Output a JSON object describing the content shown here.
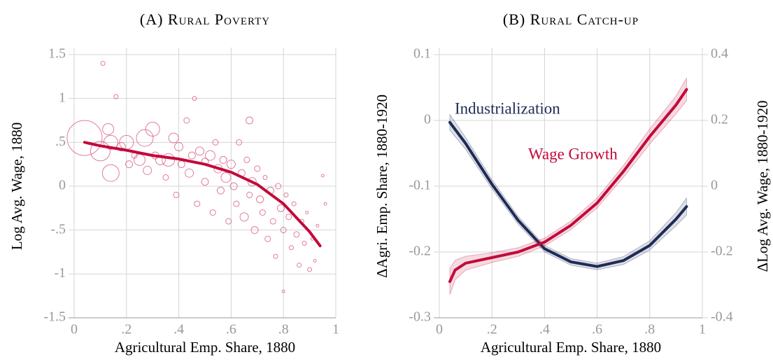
{
  "chart_data": [
    {
      "type": "scatter",
      "title": "(A) Rural Poverty",
      "x_label": "Agricultural  Emp. Share, 1880",
      "y_label": "Log Avg. Wage, 1880",
      "xlim": [
        0,
        1
      ],
      "ylim": [
        -1.5,
        1.5
      ],
      "xticks": [
        0,
        {
          "value": 0.2,
          "label": ".2"
        },
        {
          "value": 0.4,
          "label": ".4"
        },
        {
          "value": 0.6,
          "label": ".6"
        },
        {
          "value": 0.8,
          "label": ".8"
        },
        1
      ],
      "yticks": [
        1.5,
        1,
        {
          "value": 0.5,
          "label": ".5"
        },
        0,
        {
          "value": -0.5,
          "label": "-.5"
        },
        -1,
        -1.5
      ],
      "grid": true,
      "points": {
        "color": "#d4527a",
        "x": [
          0.04,
          0.1,
          0.11,
          0.13,
          0.14,
          0.14,
          0.16,
          0.18,
          0.2,
          0.21,
          0.23,
          0.25,
          0.27,
          0.28,
          0.3,
          0.31,
          0.33,
          0.35,
          0.36,
          0.38,
          0.39,
          0.4,
          0.41,
          0.43,
          0.44,
          0.45,
          0.46,
          0.47,
          0.48,
          0.5,
          0.5,
          0.52,
          0.53,
          0.54,
          0.55,
          0.56,
          0.57,
          0.58,
          0.59,
          0.6,
          0.61,
          0.62,
          0.63,
          0.64,
          0.65,
          0.66,
          0.67,
          0.67,
          0.68,
          0.69,
          0.7,
          0.71,
          0.72,
          0.73,
          0.74,
          0.75,
          0.76,
          0.77,
          0.78,
          0.79,
          0.8,
          0.8,
          0.81,
          0.82,
          0.83,
          0.84,
          0.85,
          0.86,
          0.87,
          0.88,
          0.89,
          0.9,
          0.91,
          0.92,
          0.93,
          0.95,
          0.96
        ],
        "values": [
          0.55,
          0.4,
          1.4,
          0.65,
          0.5,
          0.15,
          1.02,
          0.45,
          0.5,
          0.25,
          0.35,
          0.3,
          0.55,
          0.18,
          0.65,
          0.35,
          0.3,
          0.1,
          0.3,
          0.55,
          -0.1,
          0.45,
          0.25,
          0.75,
          0.15,
          0.35,
          1.0,
          -0.2,
          0.4,
          0.28,
          0.05,
          0.35,
          -0.3,
          0.5,
          0.2,
          -0.05,
          0.3,
          0.1,
          -0.4,
          0.25,
          0.0,
          -0.2,
          0.5,
          0.15,
          -0.35,
          0.3,
          0.75,
          -0.1,
          0.05,
          -0.5,
          0.2,
          -0.15,
          -0.3,
          0.1,
          -0.6,
          -0.05,
          -0.4,
          -0.8,
          0.0,
          -0.25,
          -0.5,
          -1.2,
          -0.1,
          -0.35,
          -0.7,
          -0.2,
          -0.55,
          -0.9,
          -0.4,
          -0.65,
          -0.3,
          -0.95,
          -0.6,
          -0.85,
          -0.45,
          0.12,
          -0.2
        ],
        "sizes": [
          25,
          14,
          3,
          8,
          10,
          12,
          3,
          6,
          10,
          5,
          4,
          8,
          12,
          6,
          10,
          5,
          7,
          4,
          9,
          7,
          4,
          6,
          5,
          4,
          6,
          5,
          3,
          4,
          6,
          5,
          5,
          7,
          4,
          4,
          6,
          5,
          5,
          7,
          4,
          6,
          5,
          4,
          4,
          5,
          6,
          4,
          5,
          4,
          6,
          5,
          4,
          5,
          4,
          3,
          4,
          5,
          4,
          3,
          4,
          5,
          4,
          2,
          3,
          4,
          3,
          3,
          4,
          3,
          3,
          3,
          2,
          3,
          2,
          2,
          2,
          2,
          2
        ]
      },
      "fit": {
        "color": "#c20a3a",
        "x": [
          0.04,
          0.1,
          0.2,
          0.3,
          0.4,
          0.5,
          0.6,
          0.7,
          0.8,
          0.9,
          0.94
        ],
        "values": [
          0.5,
          0.46,
          0.41,
          0.35,
          0.31,
          0.25,
          0.16,
          0.02,
          -0.2,
          -0.52,
          -0.68
        ]
      }
    },
    {
      "type": "line",
      "title": "(B) Rural Catch-up",
      "x_label": "Agricultural  Emp. Share, 1880",
      "y_label": "ΔAgri. Emp. Share, 1880-1920",
      "y2_label": "ΔLog Avg. Wage, 1880-1920",
      "xlim": [
        0,
        1
      ],
      "ylim": [
        -0.3,
        0.1
      ],
      "y2lim": [
        -0.4,
        0.4
      ],
      "xticks": [
        0,
        {
          "value": 0.2,
          "label": ".2"
        },
        {
          "value": 0.4,
          "label": ".4"
        },
        {
          "value": 0.6,
          "label": ".6"
        },
        {
          "value": 0.8,
          "label": ".8"
        },
        1
      ],
      "yticks": [
        0.1,
        0,
        -0.1,
        -0.2,
        -0.3
      ],
      "y2ticks": [
        0.4,
        0.2,
        0,
        -0.2,
        -0.4
      ],
      "grid": true,
      "series": [
        {
          "name": "Industrialization",
          "color": "#1e2b55",
          "axis": "y",
          "x": [
            0.04,
            0.1,
            0.2,
            0.3,
            0.4,
            0.5,
            0.6,
            0.7,
            0.8,
            0.9,
            0.94
          ],
          "values": [
            -0.003,
            -0.035,
            -0.097,
            -0.152,
            -0.195,
            -0.215,
            -0.222,
            -0.213,
            -0.19,
            -0.15,
            -0.131
          ],
          "lower": [
            -0.015,
            -0.044,
            -0.104,
            -0.158,
            -0.2,
            -0.22,
            -0.227,
            -0.219,
            -0.197,
            -0.16,
            -0.144
          ],
          "upper": [
            0.009,
            -0.026,
            -0.09,
            -0.146,
            -0.19,
            -0.21,
            -0.217,
            -0.207,
            -0.183,
            -0.14,
            -0.118
          ]
        },
        {
          "name": "Wage Growth",
          "color": "#c20a3a",
          "axis": "y2",
          "x": [
            0.04,
            0.06,
            0.1,
            0.2,
            0.3,
            0.4,
            0.5,
            0.6,
            0.7,
            0.8,
            0.9,
            0.94
          ],
          "values": [
            -0.29,
            -0.255,
            -0.234,
            -0.217,
            -0.2,
            -0.17,
            -0.119,
            -0.051,
            0.045,
            0.151,
            0.247,
            0.294
          ],
          "lower": [
            -0.33,
            -0.285,
            -0.255,
            -0.232,
            -0.213,
            -0.182,
            -0.132,
            -0.066,
            0.027,
            0.128,
            0.22,
            0.26
          ],
          "upper": [
            -0.25,
            -0.225,
            -0.213,
            -0.202,
            -0.187,
            -0.158,
            -0.106,
            -0.036,
            0.063,
            0.174,
            0.274,
            0.328
          ]
        }
      ]
    }
  ]
}
